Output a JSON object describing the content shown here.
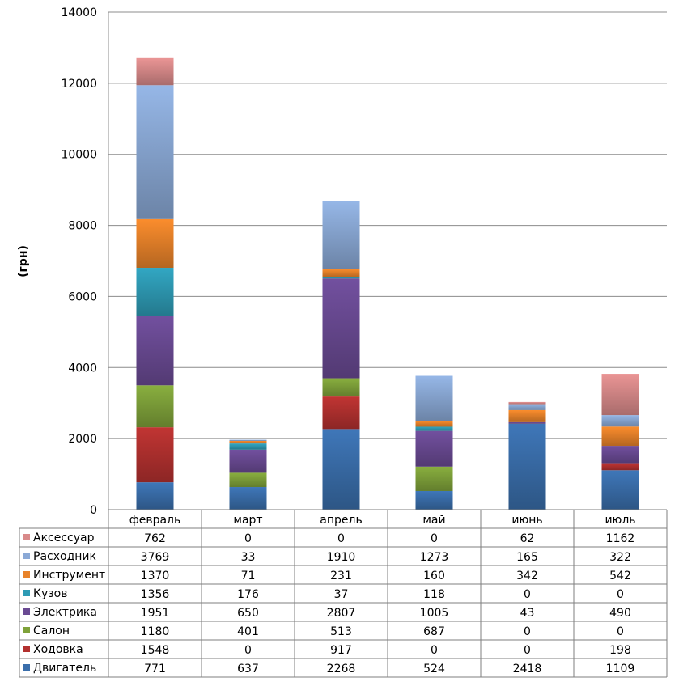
{
  "chart_data": {
    "type": "bar",
    "stacked": true,
    "title": "",
    "xlabel": "",
    "ylabel": "(грн)",
    "ylim": [
      0,
      14000
    ],
    "yticks": [
      0,
      2000,
      4000,
      6000,
      8000,
      10000,
      12000,
      14000
    ],
    "grid": true,
    "legend": "data-table",
    "categories": [
      "февраль",
      "март",
      "апрель",
      "май",
      "июнь",
      "июль"
    ],
    "series": [
      {
        "name": "Двигатель",
        "color": "#3A6EAB",
        "values": [
          771,
          637,
          2268,
          524,
          2418,
          1109
        ]
      },
      {
        "name": "Ходовка",
        "color": "#B3312F",
        "values": [
          1548,
          0,
          917,
          0,
          0,
          198
        ]
      },
      {
        "name": "Салон",
        "color": "#7FA23A",
        "values": [
          1180,
          401,
          513,
          687,
          0,
          0
        ]
      },
      {
        "name": "Электрика",
        "color": "#6A4A93",
        "values": [
          1951,
          650,
          2807,
          1005,
          43,
          490
        ]
      },
      {
        "name": "Кузов",
        "color": "#2E9BB5",
        "values": [
          1356,
          176,
          37,
          118,
          0,
          0
        ]
      },
      {
        "name": "Инструмент",
        "color": "#E8832A",
        "values": [
          1370,
          71,
          231,
          160,
          342,
          542
        ]
      },
      {
        "name": "Расходник",
        "color": "#8BA9D6",
        "values": [
          3769,
          33,
          1910,
          1273,
          165,
          322
        ]
      },
      {
        "name": "Аксессуар",
        "color": "#D98A8A",
        "values": [
          762,
          0,
          0,
          0,
          62,
          1162
        ]
      }
    ]
  }
}
